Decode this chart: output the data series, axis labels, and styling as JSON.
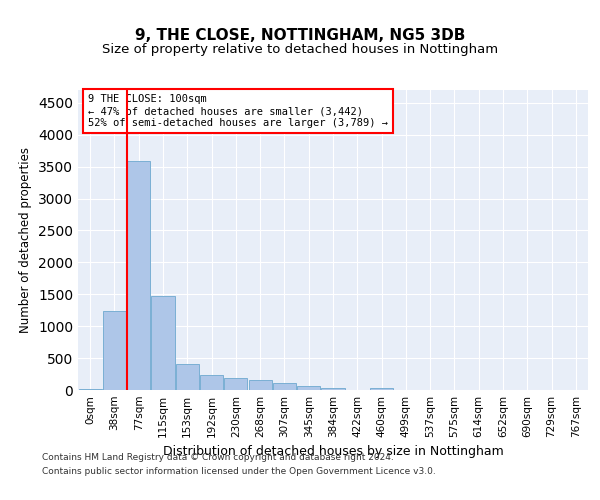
{
  "title1": "9, THE CLOSE, NOTTINGHAM, NG5 3DB",
  "title2": "Size of property relative to detached houses in Nottingham",
  "xlabel": "Distribution of detached houses by size in Nottingham",
  "ylabel": "Number of detached properties",
  "bin_labels": [
    "0sqm",
    "38sqm",
    "77sqm",
    "115sqm",
    "153sqm",
    "192sqm",
    "230sqm",
    "268sqm",
    "307sqm",
    "345sqm",
    "384sqm",
    "422sqm",
    "460sqm",
    "499sqm",
    "537sqm",
    "575sqm",
    "614sqm",
    "652sqm",
    "690sqm",
    "729sqm",
    "767sqm"
  ],
  "bar_heights": [
    20,
    1230,
    3580,
    1480,
    400,
    240,
    185,
    155,
    110,
    60,
    30,
    0,
    30,
    0,
    0,
    0,
    0,
    0,
    0,
    0,
    0
  ],
  "bar_color": "#aec6e8",
  "bar_edge_color": "#7aafd4",
  "red_line_label_title": "9 THE CLOSE: 100sqm",
  "annotation_line1": "← 47% of detached houses are smaller (3,442)",
  "annotation_line2": "52% of semi-detached houses are larger (3,789) →",
  "ylim": [
    0,
    4700
  ],
  "yticks": [
    0,
    500,
    1000,
    1500,
    2000,
    2500,
    3000,
    3500,
    4000,
    4500
  ],
  "footer1": "Contains HM Land Registry data © Crown copyright and database right 2024.",
  "footer2": "Contains public sector information licensed under the Open Government Licence v3.0.",
  "plot_bg_color": "#e8eef8"
}
